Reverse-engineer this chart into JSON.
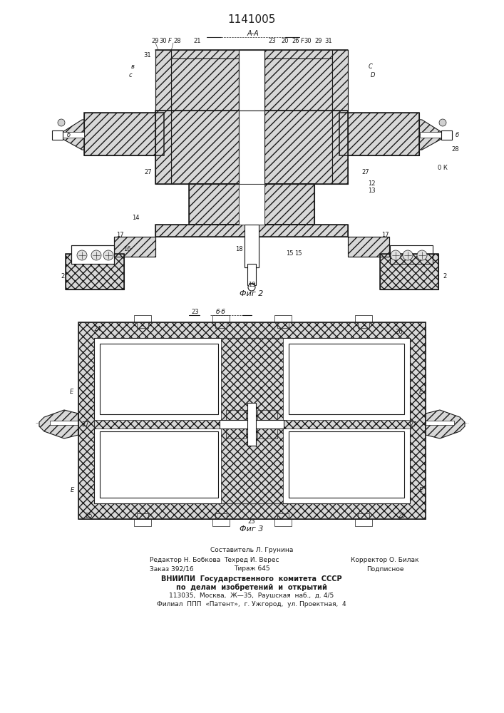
{
  "title": "1141005",
  "fig2_label": "Фиг 2",
  "fig3_label": "Фиг 3",
  "section_AA": "А-А",
  "section_BB": "б·б",
  "footer_line0": "Составитель Л. Грунина",
  "footer_line1a": "Редактор Н. Бобкова",
  "footer_line1b": "Техред И. Верес",
  "footer_line1c": "Корректор О. Билак",
  "footer_line2a": "Заказ 392/16",
  "footer_line2b": "Тираж 645",
  "footer_line2c": "Подписное",
  "footer_line3": "ВНИИПИ  Государственного  комитета  СССР",
  "footer_line4": "по  делам  изобретений  и  открытий",
  "footer_line5": "113035,  Москва,  Ж—35,  Раушская  наб.,  д. 4/5",
  "footer_line6": "Филиал  ППП  «Патент»,  г. Ужгород,  ул. Проектная,  4",
  "bg_color": "#ffffff",
  "lc": "#1a1a1a"
}
